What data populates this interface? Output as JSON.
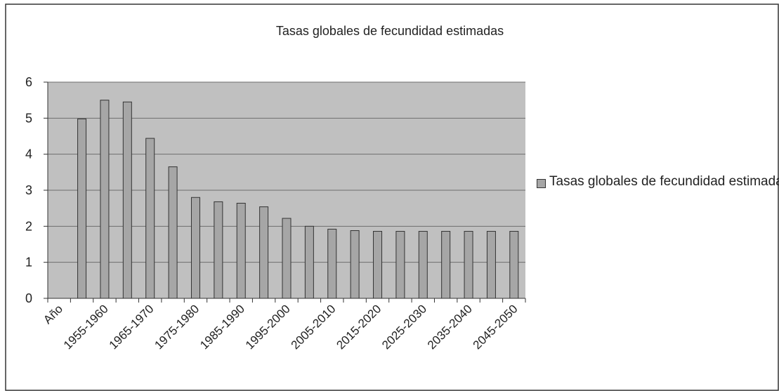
{
  "chart_data": {
    "type": "bar",
    "title": "Tasas globales de fecundidad estimadas",
    "categories": [
      "Año",
      null,
      "1955-1960",
      null,
      "1965-1970",
      null,
      "1975-1980",
      null,
      "1985-1990",
      null,
      "1995-2000",
      null,
      "2005-2010",
      null,
      "2015-2020",
      null,
      "2025-2030",
      null,
      "2035-2040",
      null,
      "2045-2050"
    ],
    "series": [
      {
        "name": "Tasas globales de fecundidad estimadas",
        "color": "#a6a6a6",
        "values": [
          null,
          4.98,
          5.5,
          5.45,
          4.44,
          3.65,
          2.8,
          2.68,
          2.64,
          2.54,
          2.22,
          2.0,
          1.92,
          1.88,
          1.86,
          1.86,
          1.86,
          1.86,
          1.86,
          1.86,
          1.86
        ]
      }
    ],
    "ylim": [
      0,
      6
    ],
    "yticks": [
      0,
      1,
      2,
      3,
      4,
      5,
      6
    ],
    "grid": true,
    "legend": "right"
  }
}
